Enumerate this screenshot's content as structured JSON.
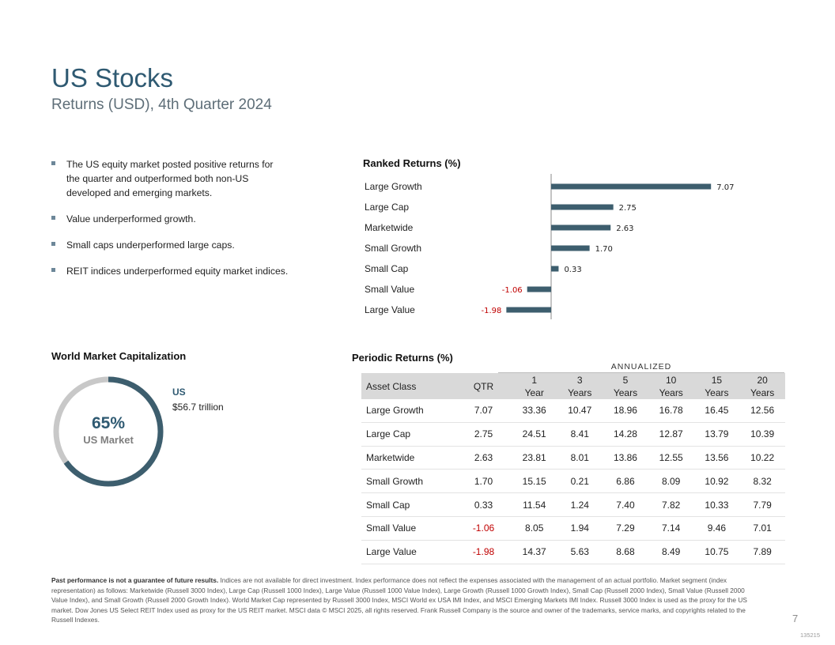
{
  "header": {
    "title": "US Stocks",
    "subtitle": "Returns (USD), 4th Quarter 2024"
  },
  "bullets": [
    "The US equity market posted positive returns for the quarter and outperformed both non-US developed and emerging markets.",
    "Value underperformed growth.",
    "Small caps underperformed large caps.",
    "REIT indices underperformed equity market indices."
  ],
  "ranked": {
    "title": "Ranked Returns (%)",
    "colors": {
      "bar": "#3d5e6e",
      "negative_label": "#c00000"
    },
    "chart_data": {
      "type": "bar",
      "orientation": "horizontal",
      "categories": [
        "Large Growth",
        "Large Cap",
        "Marketwide",
        "Small Growth",
        "Small Cap",
        "Small Value",
        "Large Value"
      ],
      "values": [
        7.07,
        2.75,
        2.63,
        1.7,
        0.33,
        -1.06,
        -1.98
      ],
      "labels": [
        "7.07",
        "2.75",
        "2.63",
        "1.70",
        "0.33",
        "-1.06",
        "-1.98"
      ],
      "title": "Ranked Returns (%)",
      "xlim": [
        -2.0,
        7.07
      ]
    }
  },
  "world_cap": {
    "title": "World Market Capitalization",
    "percent_value": 65,
    "percent_label": "65%",
    "center_label": "US Market",
    "us_label": "US",
    "us_value": "$56.7 trillion",
    "colors": {
      "us": "#3d5e6e",
      "rest": "#c8c8c8"
    }
  },
  "periodic": {
    "title": "Periodic Returns (%)",
    "annualized_label": "ANNUALIZED",
    "headers": {
      "asset_class": "Asset Class",
      "qtr": "QTR",
      "periods": [
        {
          "num": "1",
          "unit": "Year"
        },
        {
          "num": "3",
          "unit": "Years"
        },
        {
          "num": "5",
          "unit": "Years"
        },
        {
          "num": "10",
          "unit": "Years"
        },
        {
          "num": "15",
          "unit": "Years"
        },
        {
          "num": "20",
          "unit": "Years"
        }
      ]
    },
    "rows": [
      {
        "name": "Large Growth",
        "qtr": "7.07",
        "neg": false,
        "values": [
          "33.36",
          "10.47",
          "18.96",
          "16.78",
          "16.45",
          "12.56"
        ]
      },
      {
        "name": "Large Cap",
        "qtr": "2.75",
        "neg": false,
        "values": [
          "24.51",
          "8.41",
          "14.28",
          "12.87",
          "13.79",
          "10.39"
        ]
      },
      {
        "name": "Marketwide",
        "qtr": "2.63",
        "neg": false,
        "values": [
          "23.81",
          "8.01",
          "13.86",
          "12.55",
          "13.56",
          "10.22"
        ]
      },
      {
        "name": "Small Growth",
        "qtr": "1.70",
        "neg": false,
        "values": [
          "15.15",
          "0.21",
          "6.86",
          "8.09",
          "10.92",
          "8.32"
        ]
      },
      {
        "name": "Small Cap",
        "qtr": "0.33",
        "neg": false,
        "values": [
          "11.54",
          "1.24",
          "7.40",
          "7.82",
          "10.33",
          "7.79"
        ]
      },
      {
        "name": "Small Value",
        "qtr": "-1.06",
        "neg": true,
        "values": [
          "8.05",
          "1.94",
          "7.29",
          "7.14",
          "9.46",
          "7.01"
        ]
      },
      {
        "name": "Large Value",
        "qtr": "-1.98",
        "neg": true,
        "values": [
          "14.37",
          "5.63",
          "8.68",
          "8.49",
          "10.75",
          "7.89"
        ]
      }
    ]
  },
  "footnote": {
    "bold": "Past performance is not a guarantee of future results.",
    "text": "Indices are not available for direct investment. Index performance does not reflect the expenses associated with the management of an actual portfolio. Market segment (index representation) as follows: Marketwide (Russell 3000 Index), Large Cap (Russell 1000 Index), Large Value (Russell 1000 Value Index), Large Growth (Russell 1000 Growth Index), Small Cap (Russell 2000 Index), Small Value (Russell 2000 Value Index), and Small Growth (Russell 2000 Growth Index). World Market Cap represented by Russell 3000 Index, MSCI World ex USA IMI Index, and MSCI Emerging Markets IMI Index. Russell 3000 Index is used as the proxy for the US market. Dow Jones US Select REIT Index used as proxy for the US REIT market. MSCI data © MSCI 2025, all rights reserved. Frank Russell Company is the source and owner of the trademarks, service marks, and copyrights related to the Russell Indexes."
  },
  "page": {
    "number": "7",
    "code": "135215"
  }
}
